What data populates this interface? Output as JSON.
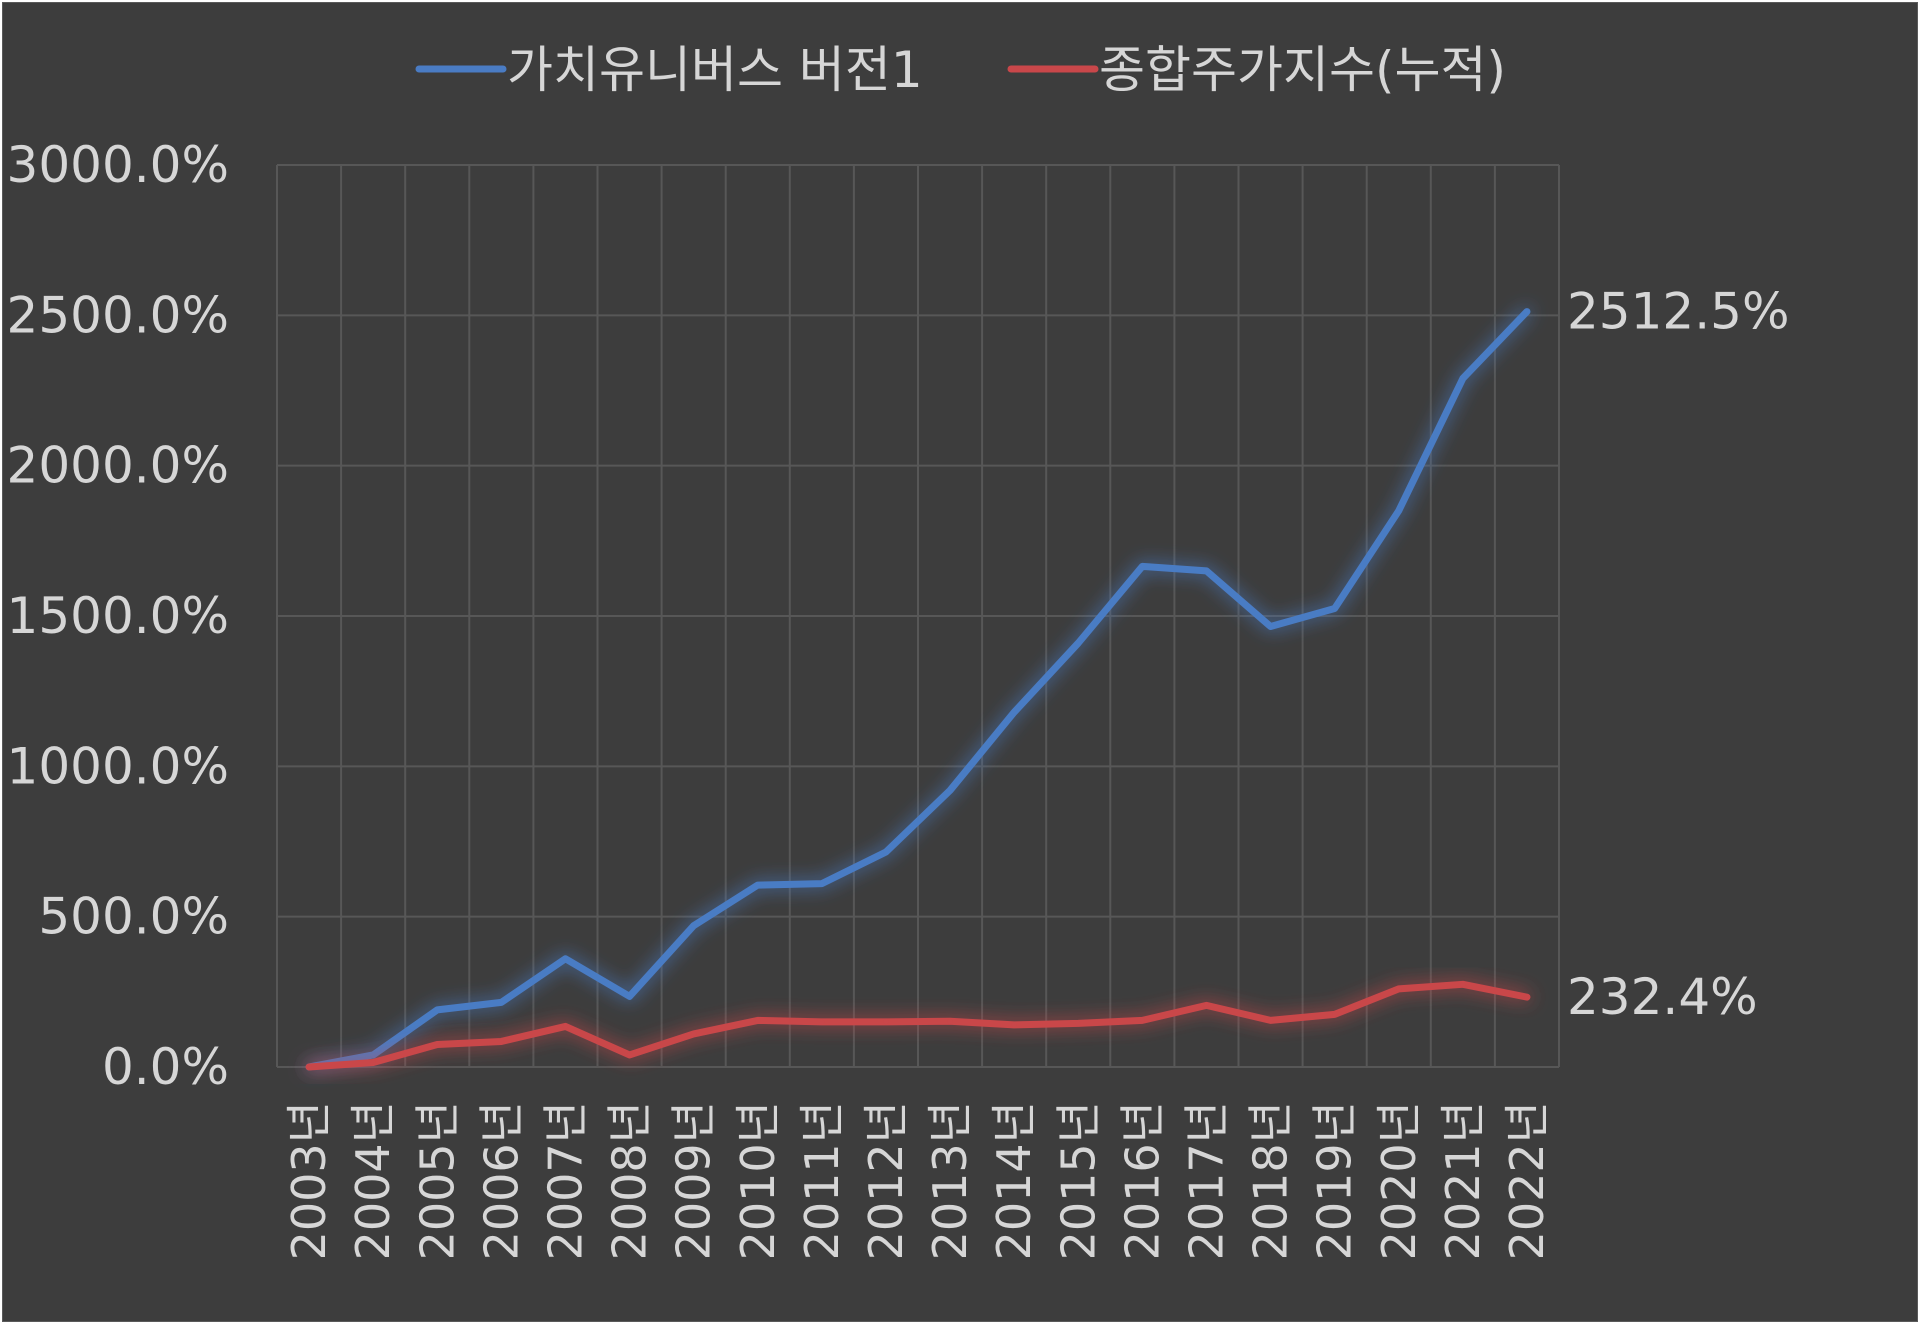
{
  "chart_data": {
    "type": "line",
    "title": "",
    "xlabel": "",
    "ylabel": "",
    "categories": [
      "2003년",
      "2004년",
      "2005년",
      "2006년",
      "2007년",
      "2008년",
      "2009년",
      "2010년",
      "2011년",
      "2012년",
      "2013년",
      "2014년",
      "2015년",
      "2016년",
      "2017년",
      "2018년",
      "2019년",
      "2020년",
      "2021년",
      "2022년"
    ],
    "y_ticks": [
      "0.0%",
      "500.0%",
      "1000.0%",
      "1500.0%",
      "2000.0%",
      "2500.0%",
      "3000.0%"
    ],
    "ylim": [
      0,
      3000
    ],
    "grid": true,
    "legend_position": "top",
    "series": [
      {
        "name": "가치유니버스 버전1",
        "color": "#4a7cc4",
        "values": [
          0,
          40,
          190,
          215,
          360,
          235,
          470,
          605,
          610,
          715,
          920,
          1180,
          1410,
          1665,
          1650,
          1465,
          1525,
          1850,
          2290,
          2512.5
        ],
        "end_label": "2512.5%"
      },
      {
        "name": "종합주가지수(누적)",
        "color": "#c9474a",
        "values": [
          0,
          15,
          75,
          85,
          135,
          40,
          110,
          155,
          150,
          150,
          152,
          140,
          145,
          155,
          205,
          155,
          175,
          260,
          275,
          232.4
        ],
        "end_label": "232.4%"
      }
    ]
  }
}
